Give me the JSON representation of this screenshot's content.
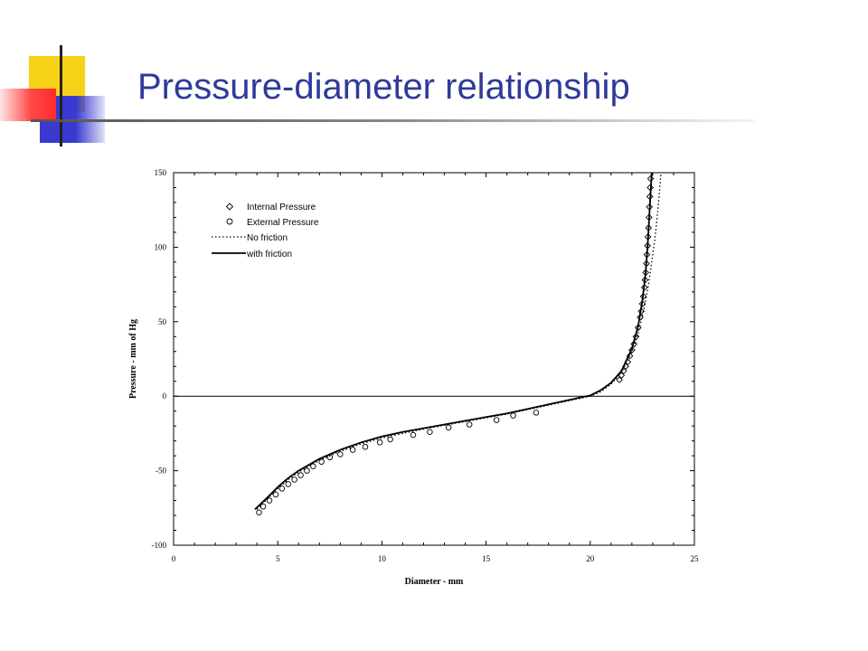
{
  "slide": {
    "title": "Pressure-diameter relationship",
    "colors": {
      "title": "#2f3a9a",
      "deco_yellow": "#f7d117",
      "deco_blue": "#3a3ad0",
      "deco_red": "#ff3b3b"
    }
  },
  "chart_data": {
    "type": "scatter",
    "title": "",
    "xlabel": "Diameter - mm",
    "ylabel": "Pressure - mm of Hg",
    "xlim": [
      0,
      25
    ],
    "ylim": [
      -100,
      150
    ],
    "xticks": [
      0,
      5,
      10,
      15,
      20,
      25
    ],
    "yticks": [
      -100,
      -50,
      0,
      50,
      100,
      150
    ],
    "grid": false,
    "legend_position": "top-left",
    "zero_line": true,
    "legend": {
      "internal": "Internal Pressure",
      "external": "External Pressure",
      "nofriction": "No friction",
      "withfriction": "with friction"
    },
    "series": [
      {
        "name": "Internal Pressure",
        "kind": "markers-diamond",
        "x": [
          21.4,
          21.5,
          21.6,
          21.7,
          21.8,
          21.9,
          22.0,
          22.1,
          22.2,
          22.3,
          22.4,
          22.45,
          22.5,
          22.55,
          22.6,
          22.63,
          22.66,
          22.7,
          22.72,
          22.75,
          22.77,
          22.8,
          22.82,
          22.84,
          22.86,
          22.88,
          22.9
        ],
        "y": [
          11,
          14,
          17,
          20,
          23,
          27,
          31,
          35,
          40,
          46,
          53,
          57,
          62,
          67,
          73,
          78,
          83,
          89,
          95,
          101,
          107,
          113,
          120,
          127,
          134,
          140,
          146
        ]
      },
      {
        "name": "External Pressure",
        "kind": "markers-circle",
        "x": [
          4.1,
          4.3,
          4.6,
          4.9,
          5.2,
          5.5,
          5.8,
          6.1,
          6.4,
          6.7,
          7.1,
          7.5,
          8.0,
          8.6,
          9.2,
          9.9,
          10.4,
          11.5,
          12.3,
          13.2,
          14.2,
          15.5,
          16.3,
          17.4
        ],
        "y": [
          -78,
          -74,
          -70,
          -66,
          -62,
          -59,
          -56,
          -53,
          -50,
          -47,
          -44,
          -41,
          -39,
          -36,
          -34,
          -31,
          -29,
          -26,
          -24,
          -21,
          -19,
          -16,
          -13,
          -11
        ]
      },
      {
        "name": "No friction",
        "kind": "dotted-line",
        "x": [
          4.0,
          4.5,
          5.0,
          5.5,
          6.0,
          7.0,
          8.0,
          9.0,
          10.0,
          11.0,
          12.0,
          13.0,
          14.0,
          15.0,
          16.0,
          17.0,
          18.0,
          19.0,
          19.5,
          20.0,
          20.5,
          21.0,
          21.5,
          22.0,
          22.3,
          22.6,
          22.8,
          23.0,
          23.1,
          23.2,
          23.3,
          23.4
        ],
        "y": [
          -76,
          -69,
          -62,
          -56,
          -51,
          -43,
          -37,
          -32,
          -28,
          -25,
          -22,
          -19.5,
          -17,
          -14.5,
          -12,
          -9,
          -6,
          -3,
          -1.5,
          0,
          3,
          8,
          16,
          30,
          42,
          60,
          75,
          95,
          105,
          118,
          133,
          150
        ]
      },
      {
        "name": "with friction",
        "kind": "solid-line",
        "x": [
          3.9,
          4.5,
          5.0,
          5.5,
          6.0,
          7.0,
          8.0,
          9.0,
          10.0,
          11.0,
          12.0,
          13.0,
          14.0,
          15.0,
          16.0,
          17.0,
          18.0,
          19.0,
          19.5,
          20.0,
          20.5,
          21.0,
          21.5,
          22.0,
          22.3,
          22.5,
          22.65,
          22.75,
          22.85,
          22.95
        ],
        "y": [
          -76,
          -68,
          -61,
          -55,
          -50,
          -42,
          -36,
          -31,
          -27,
          -24,
          -21.5,
          -19,
          -16.5,
          -14,
          -11.5,
          -8.5,
          -5.5,
          -2.5,
          -1,
          0.5,
          4,
          9,
          17,
          32,
          47,
          64,
          82,
          100,
          125,
          150
        ]
      }
    ]
  }
}
